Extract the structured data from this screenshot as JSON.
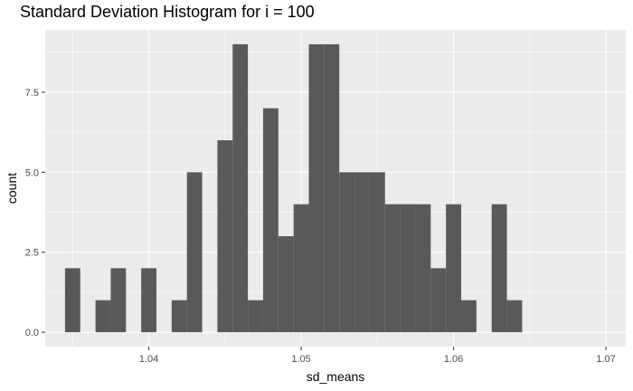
{
  "chart_data": {
    "type": "bar",
    "title": "Standard Deviation Histogram for i = 100",
    "xlabel": "sd_means",
    "ylabel": "count",
    "xlim": [
      1.0332,
      1.0713
    ],
    "ylim": [
      -0.45,
      9.45
    ],
    "x_ticks": [
      {
        "value": 1.04,
        "label": "1.04"
      },
      {
        "value": 1.05,
        "label": "1.05"
      },
      {
        "value": 1.06,
        "label": "1.06"
      },
      {
        "value": 1.07,
        "label": "1.07"
      }
    ],
    "y_ticks": [
      {
        "value": 0,
        "label": "0.0"
      },
      {
        "value": 2.5,
        "label": "2.5"
      },
      {
        "value": 5,
        "label": "5.0"
      },
      {
        "value": 7.5,
        "label": "7.5"
      }
    ],
    "bins": {
      "start": 1.0345,
      "width": 0.001,
      "counts": [
        2,
        0,
        1,
        2,
        0,
        2,
        0,
        1,
        5,
        0,
        6,
        9,
        1,
        7,
        3,
        4,
        9,
        9,
        5,
        5,
        5,
        4,
        4,
        4,
        2,
        4,
        1,
        0,
        4,
        1
      ]
    },
    "grid": true,
    "legend": "none",
    "colors": {
      "bar": "#595959",
      "panel": "#ebebeb",
      "grid_major": "#ffffff",
      "axis_text": "#4d4d4d",
      "axis_title": "#000000"
    }
  }
}
